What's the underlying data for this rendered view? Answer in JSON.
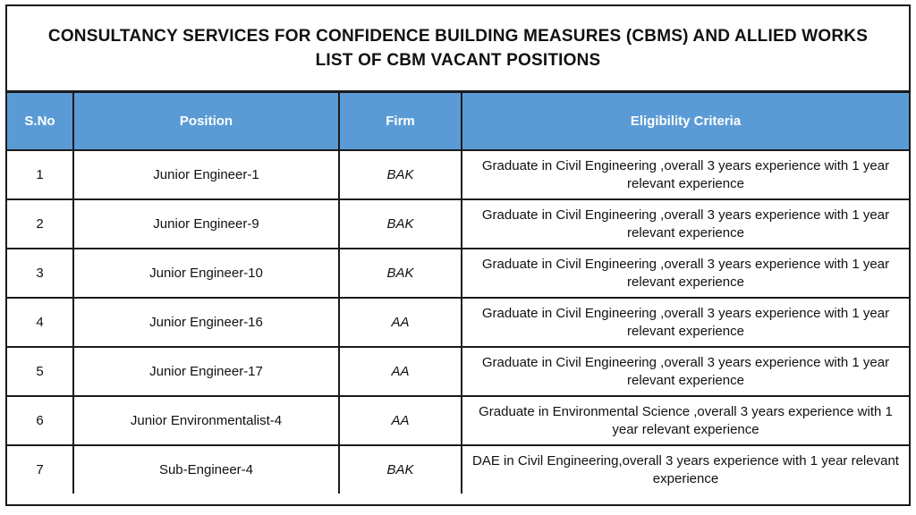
{
  "title": {
    "line1": "CONSULTANCY SERVICES FOR CONFIDENCE BUILDING MEASURES (CBMS) AND ALLIED WORKS",
    "line2": "LIST OF CBM VACANT POSITIONS"
  },
  "table": {
    "headers": [
      "S.No",
      "Position",
      "Firm",
      "Eligibility Criteria"
    ],
    "header_color": "#5b9bd5",
    "rows": [
      {
        "sno": "1",
        "position": "Junior Engineer-1",
        "firm": "BAK",
        "criteria": "Graduate in Civil Engineering ,overall 3 years experience with 1 year relevant experience"
      },
      {
        "sno": "2",
        "position": "Junior Engineer-9",
        "firm": "BAK",
        "criteria": "Graduate in Civil Engineering ,overall 3 years experience with 1 year relevant experience"
      },
      {
        "sno": "3",
        "position": "Junior Engineer-10",
        "firm": "BAK",
        "criteria": "Graduate in Civil Engineering ,overall 3 years experience with 1 year relevant experience"
      },
      {
        "sno": "4",
        "position": "Junior Engineer-16",
        "firm": "AA",
        "criteria": "Graduate in Civil Engineering ,overall 3 years experience with 1 year relevant experience"
      },
      {
        "sno": "5",
        "position": "Junior Engineer-17",
        "firm": "AA",
        "criteria": "Graduate in Civil Engineering ,overall 3 years experience with 1 year relevant experience"
      },
      {
        "sno": "6",
        "position": "Junior Environmentalist-4",
        "firm": "AA",
        "criteria": "Graduate in Environmental Science  ,overall 3 years experience with 1 year relevant experience"
      },
      {
        "sno": "7",
        "position": "Sub-Engineer-4",
        "firm": "BAK",
        "criteria": "DAE in Civil Engineering,overall 3 years experience with 1 year relevant experience"
      }
    ]
  }
}
